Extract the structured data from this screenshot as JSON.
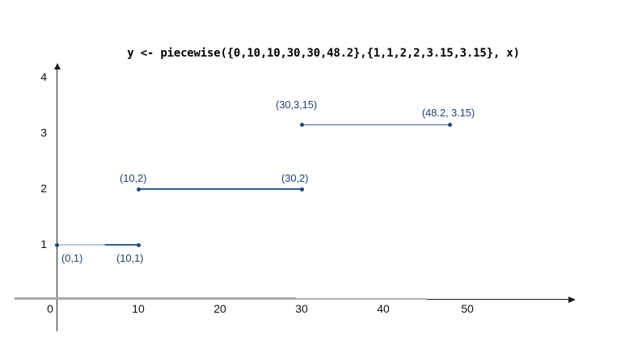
{
  "chart_data": {
    "type": "line",
    "title": "y <- piecewise({0,10,10,30,30,48.2},{1,1,2,2,3.15,3.15}, x)",
    "xlabel": "",
    "ylabel": "",
    "xlim": [
      0,
      63
    ],
    "ylim": [
      0,
      4.3
    ],
    "grid": false,
    "legend": null,
    "x_ticks": [
      {
        "value": 0,
        "label": "0",
        "dx": -8
      },
      {
        "value": 10,
        "label": "10",
        "dx": 0
      },
      {
        "value": 20,
        "label": "20",
        "dx": 0
      },
      {
        "value": 30,
        "label": "30",
        "dx": 0
      },
      {
        "value": 40,
        "label": "40",
        "dx": 0
      },
      {
        "value": 50,
        "label": "50",
        "dx": 3
      }
    ],
    "y_ticks": [
      {
        "value": 1,
        "label": "1"
      },
      {
        "value": 2,
        "label": "2"
      },
      {
        "value": 3,
        "label": "3"
      },
      {
        "value": 4,
        "label": "4"
      }
    ],
    "segments": [
      {
        "x1": 0,
        "y1": 1,
        "x2": 10,
        "y2": 1,
        "fade_start": true,
        "labels": [
          {
            "text": "(0,1)",
            "at": "start",
            "dx": 6,
            "dy": 9
          },
          {
            "text": "(10,1)",
            "at": "end",
            "dx": -27,
            "dy": 9
          }
        ]
      },
      {
        "x1": 10,
        "y1": 2,
        "x2": 30,
        "y2": 2,
        "fade_start": false,
        "labels": [
          {
            "text": "(10,2)",
            "at": "start",
            "dx": -23,
            "dy": -21
          },
          {
            "text": "(30,2)",
            "at": "end",
            "dx": -25,
            "dy": -21
          }
        ]
      },
      {
        "x1": 30,
        "y1": 3.15,
        "x2": 48.2,
        "y2": 3.15,
        "fade_start": false,
        "labels": [
          {
            "text": "(30,3,15)",
            "at": "start",
            "dx": -32,
            "dy": -33
          },
          {
            "text": "(48.2, 3.15)",
            "at": "end",
            "dx": -35,
            "dy": -23
          }
        ]
      }
    ],
    "colors": {
      "point": "#1e4a76",
      "segment_line": "#33608f",
      "segment_line_faded": "#b9c6d9",
      "point_label": "#1f4571",
      "axis": "#1c1c1c",
      "axis_gray": "#a8a8a8",
      "tick_label": "#111111",
      "title": "#000000"
    }
  }
}
